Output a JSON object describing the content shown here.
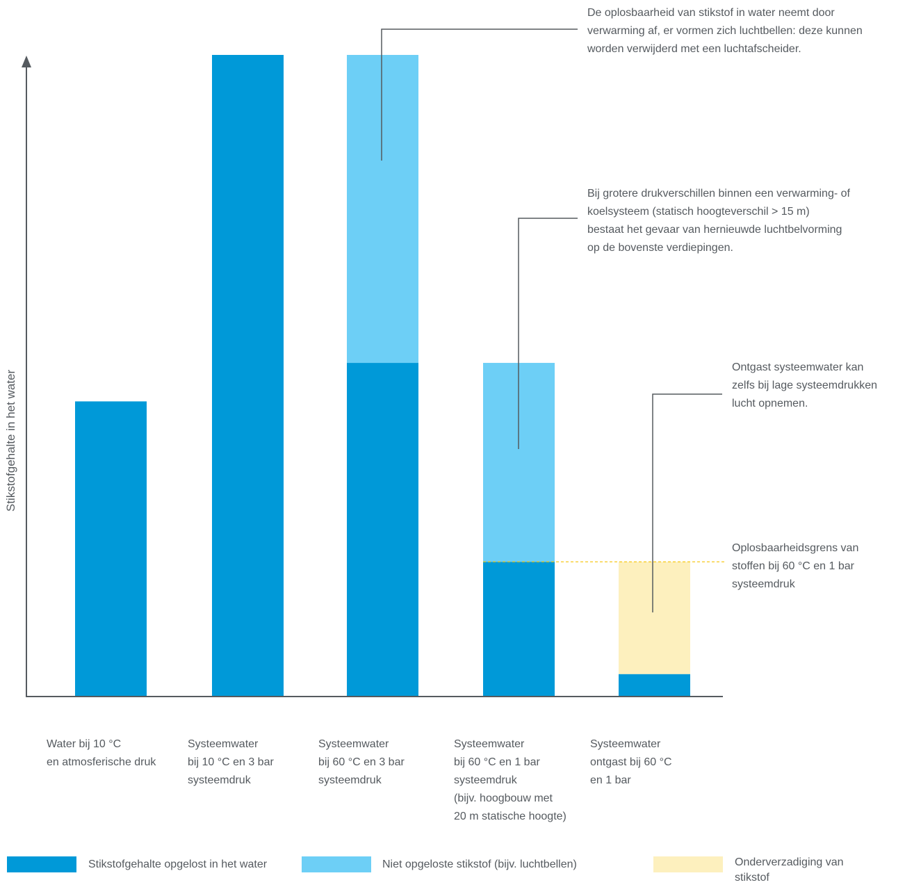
{
  "chart_data": {
    "type": "bar",
    "stacked": true,
    "ylabel": "Stikstofgehalte in het water",
    "ylim": [
      0,
      100
    ],
    "categories": [
      [
        "Water bij 10 °C",
        "en atmosferische druk"
      ],
      [
        "Systeemwater",
        "bij 10 °C en 3 bar",
        "systeemdruk"
      ],
      [
        "Systeemwater",
        "bij 60 °C en 3 bar",
        "systeemdruk"
      ],
      [
        "Systeemwater",
        "bij 60 °C en 1 bar",
        "systeemdruk",
        "(bijv. hoogbouw met",
        "20 m statische hoogte)"
      ],
      [
        "Systeemwater",
        "ontgast bij 60 °C",
        "en 1 bar"
      ]
    ],
    "series": [
      {
        "name": "Stikstofgehalte opgelost in het water",
        "color": "#0099d8",
        "values": [
          46,
          100,
          52,
          21,
          3.5
        ]
      },
      {
        "name": "Niet opgeloste stikstof (bijv. luchtbellen)",
        "color": "#6dcff6",
        "values": [
          0,
          0,
          48,
          31,
          0
        ]
      },
      {
        "name": "Onderverzadiging van stikstof",
        "color": "#fdf0be",
        "values": [
          0,
          0,
          0,
          0,
          17.5
        ]
      }
    ],
    "reference_line": {
      "value": 21,
      "color": "#f5c400",
      "label": [
        "Oplosbaarheidsgrens van",
        "stoffen bij 60 °C en 1 bar",
        "systeemdruk"
      ]
    },
    "annotations": [
      {
        "bar": 2,
        "lines": [
          "De oplosbaarheid van stikstof in water neemt door",
          "verwarming af, er vormen zich luchtbellen: deze kunnen",
          "worden verwijderd met een luchtafscheider."
        ]
      },
      {
        "bar": 3,
        "lines": [
          "Bij grotere drukverschillen binnen een verwarming- of",
          "koelsysteem (statisch hoogteverschil > 15 m)",
          "bestaat het gevaar van hernieuwde luchtbelvorming",
          "op de bovenste verdiepingen."
        ]
      },
      {
        "bar": 4,
        "lines": [
          "Ontgast systeemwater kan",
          "zelfs bij lage systeemdrukken",
          "lucht opnemen."
        ]
      }
    ],
    "legend": [
      {
        "lines": [
          "Stikstofgehalte opgelost in het water"
        ],
        "color": "#0099d8"
      },
      {
        "lines": [
          "Niet opgeloste stikstof (bijv. luchtbellen)"
        ],
        "color": "#6dcff6"
      },
      {
        "lines": [
          "Onderverzadiging van",
          "stikstof"
        ],
        "color": "#fdf0be"
      }
    ],
    "axis_color": "#555a5f",
    "leader_color": "#555a5f"
  }
}
